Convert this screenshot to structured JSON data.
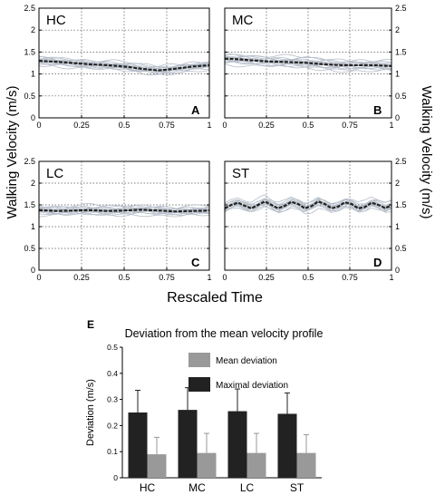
{
  "chart_data": [
    {
      "type": "line",
      "panel_label": "A",
      "group_label": "HC",
      "xlim": [
        0,
        1
      ],
      "ylim": [
        0,
        2.5
      ],
      "x_ticks": [
        "0",
        "0.25",
        "0.5",
        "0.75",
        "1"
      ],
      "y_ticks": [
        "0",
        "0.5",
        "1",
        "1.5",
        "2",
        "2.5"
      ],
      "grid": true,
      "mean_curve": {
        "x": [
          0,
          0.1,
          0.2,
          0.3,
          0.4,
          0.5,
          0.6,
          0.7,
          0.8,
          0.9,
          1.0
        ],
        "y": [
          1.3,
          1.28,
          1.25,
          1.22,
          1.2,
          1.17,
          1.12,
          1.08,
          1.12,
          1.17,
          1.2
        ]
      },
      "individual_spread": 0.12
    },
    {
      "type": "line",
      "panel_label": "B",
      "group_label": "MC",
      "xlim": [
        0,
        1
      ],
      "ylim": [
        0,
        2.5
      ],
      "x_ticks": [
        "0",
        "0.25",
        "0.5",
        "0.75",
        "1"
      ],
      "y_ticks": [
        "0",
        "0.5",
        "1",
        "1.5",
        "2",
        "2.5"
      ],
      "grid": true,
      "mean_curve": {
        "x": [
          0,
          0.1,
          0.2,
          0.3,
          0.4,
          0.5,
          0.6,
          0.7,
          0.8,
          0.9,
          1.0
        ],
        "y": [
          1.35,
          1.33,
          1.3,
          1.28,
          1.27,
          1.25,
          1.22,
          1.2,
          1.2,
          1.2,
          1.18
        ]
      },
      "individual_spread": 0.15
    },
    {
      "type": "line",
      "panel_label": "C",
      "group_label": "LC",
      "xlim": [
        0,
        1
      ],
      "ylim": [
        0,
        2.5
      ],
      "x_ticks": [
        "0",
        "0.25",
        "0.5",
        "0.75",
        "1"
      ],
      "y_ticks": [
        "0",
        "0.5",
        "1",
        "1.5",
        "2",
        "2.5"
      ],
      "grid": true,
      "mean_curve": {
        "x": [
          0,
          0.1,
          0.2,
          0.3,
          0.4,
          0.5,
          0.6,
          0.7,
          0.8,
          0.9,
          1.0
        ],
        "y": [
          1.38,
          1.36,
          1.37,
          1.38,
          1.36,
          1.37,
          1.39,
          1.37,
          1.35,
          1.36,
          1.37
        ]
      },
      "individual_spread": 0.13
    },
    {
      "type": "line",
      "panel_label": "D",
      "group_label": "ST",
      "xlim": [
        0,
        1
      ],
      "ylim": [
        0,
        2.5
      ],
      "x_ticks": [
        "0",
        "0.25",
        "0.5",
        "0.75",
        "1"
      ],
      "y_ticks": [
        "0",
        "0.5",
        "1",
        "1.5",
        "2",
        "2.5"
      ],
      "grid": true,
      "mean_curve": {
        "x": [
          0,
          0.04,
          0.08,
          0.12,
          0.16,
          0.2,
          0.24,
          0.28,
          0.32,
          0.36,
          0.4,
          0.44,
          0.48,
          0.52,
          0.56,
          0.6,
          0.64,
          0.68,
          0.72,
          0.76,
          0.8,
          0.84,
          0.88,
          0.92,
          0.96,
          1.0
        ],
        "y": [
          1.42,
          1.5,
          1.55,
          1.48,
          1.42,
          1.5,
          1.58,
          1.5,
          1.42,
          1.48,
          1.57,
          1.52,
          1.42,
          1.47,
          1.58,
          1.52,
          1.42,
          1.46,
          1.56,
          1.52,
          1.42,
          1.45,
          1.55,
          1.5,
          1.43,
          1.48
        ]
      },
      "individual_spread": 0.14
    },
    {
      "type": "bar",
      "panel_label": "E",
      "title": "Deviation from the mean velocity profile",
      "ylabel": "Deviation (m/s)",
      "categories": [
        "HC",
        "MC",
        "LC",
        "ST"
      ],
      "ylim": [
        0,
        0.5
      ],
      "y_ticks": [
        "0",
        "0.1",
        "0.2",
        "0.3",
        "0.4",
        "0.5"
      ],
      "legend_position": "top-right",
      "series": [
        {
          "name": "Maximal deviation",
          "color": "#222222",
          "values": [
            0.25,
            0.26,
            0.255,
            0.245
          ],
          "error": [
            0.085,
            0.085,
            0.085,
            0.08
          ]
        },
        {
          "name": "Mean deviation",
          "color": "#999999",
          "values": [
            0.09,
            0.095,
            0.095,
            0.095
          ],
          "error": [
            0.065,
            0.075,
            0.075,
            0.07
          ]
        }
      ]
    }
  ],
  "figure_text": {
    "y_axis_left": "Walking Velocity (m/s)",
    "y_axis_right": "Walking Velocity (m/s)",
    "x_axis_common": "Rescaled Time"
  },
  "colors": {
    "individual_curves": "#b4bcc8",
    "mean_curve": "#222222",
    "grid": "#555555"
  }
}
